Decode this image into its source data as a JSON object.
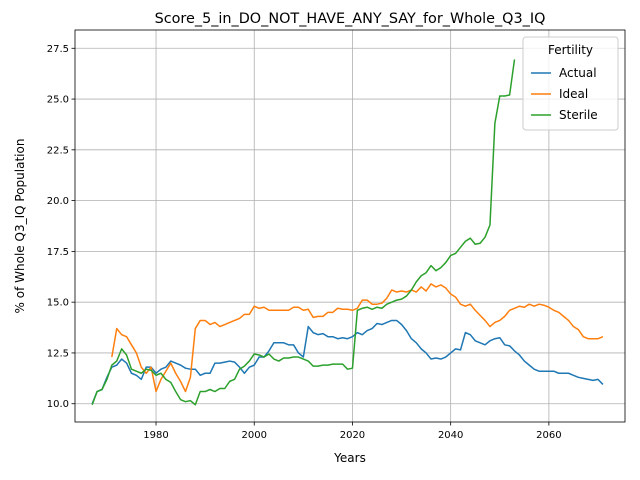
{
  "chart_data": {
    "type": "line",
    "title": "Score_5_in_DO_NOT_HAVE_ANY_SAY_for_Whole_Q3_IQ",
    "xlabel": "Years",
    "ylabel": "% of Whole Q3_IQ Population",
    "xlim": [
      1963.5,
      2075.5
    ],
    "ylim": [
      9.1,
      28.4
    ],
    "xticks": [
      1980,
      2000,
      2020,
      2040,
      2060
    ],
    "yticks": [
      10.0,
      12.5,
      15.0,
      17.5,
      20.0,
      22.5,
      25.0,
      27.5
    ],
    "xtick_labels": [
      "1980",
      "2000",
      "2020",
      "2040",
      "2060"
    ],
    "ytick_labels": [
      "10.0",
      "12.5",
      "15.0",
      "17.5",
      "20.0",
      "22.5",
      "25.0",
      "27.5"
    ],
    "grid": true,
    "legend": {
      "title": "Fertility",
      "position": "top-right"
    },
    "series": [
      {
        "name": "Actual",
        "color": "#1f77b4",
        "points": [
          [
            1967,
            10.0
          ],
          [
            1968,
            10.6
          ],
          [
            1969,
            10.7
          ],
          [
            1970,
            11.3
          ],
          [
            1971,
            11.8
          ],
          [
            1972,
            11.9
          ],
          [
            1973,
            12.2
          ],
          [
            1974,
            12.0
          ],
          [
            1975,
            11.5
          ],
          [
            1976,
            11.4
          ],
          [
            1977,
            11.2
          ],
          [
            1978,
            11.8
          ],
          [
            1979,
            11.8
          ],
          [
            1980,
            11.5
          ],
          [
            1981,
            11.7
          ],
          [
            1982,
            11.8
          ],
          [
            1983,
            12.1
          ],
          [
            1984,
            12.0
          ],
          [
            1985,
            11.9
          ],
          [
            1986,
            11.75
          ],
          [
            1987,
            11.7
          ],
          [
            1988,
            11.7
          ],
          [
            1989,
            11.4
          ],
          [
            1990,
            11.5
          ],
          [
            1991,
            11.5
          ],
          [
            1992,
            12.0
          ],
          [
            1993,
            12.0
          ],
          [
            1994,
            12.05
          ],
          [
            1995,
            12.1
          ],
          [
            1996,
            12.05
          ],
          [
            1997,
            11.8
          ],
          [
            1998,
            11.5
          ],
          [
            1999,
            11.8
          ],
          [
            2000,
            11.9
          ],
          [
            2001,
            12.3
          ],
          [
            2002,
            12.3
          ],
          [
            2003,
            12.6
          ],
          [
            2004,
            13.0
          ],
          [
            2005,
            13.0
          ],
          [
            2006,
            13.0
          ],
          [
            2007,
            12.9
          ],
          [
            2008,
            12.9
          ],
          [
            2009,
            12.5
          ],
          [
            2010,
            12.3
          ],
          [
            2011,
            13.8
          ],
          [
            2012,
            13.5
          ],
          [
            2013,
            13.4
          ],
          [
            2014,
            13.45
          ],
          [
            2015,
            13.3
          ],
          [
            2016,
            13.3
          ],
          [
            2017,
            13.2
          ],
          [
            2018,
            13.25
          ],
          [
            2019,
            13.2
          ],
          [
            2020,
            13.3
          ],
          [
            2021,
            13.5
          ],
          [
            2022,
            13.4
          ],
          [
            2023,
            13.6
          ],
          [
            2024,
            13.7
          ],
          [
            2025,
            13.95
          ],
          [
            2026,
            13.9
          ],
          [
            2027,
            14.0
          ],
          [
            2028,
            14.1
          ],
          [
            2029,
            14.1
          ],
          [
            2030,
            13.9
          ],
          [
            2031,
            13.6
          ],
          [
            2032,
            13.2
          ],
          [
            2033,
            13.0
          ],
          [
            2034,
            12.7
          ],
          [
            2035,
            12.5
          ],
          [
            2036,
            12.2
          ],
          [
            2037,
            12.25
          ],
          [
            2038,
            12.2
          ],
          [
            2039,
            12.3
          ],
          [
            2040,
            12.5
          ],
          [
            2041,
            12.7
          ],
          [
            2042,
            12.65
          ],
          [
            2043,
            13.5
          ],
          [
            2044,
            13.4
          ],
          [
            2045,
            13.1
          ],
          [
            2046,
            13.0
          ],
          [
            2047,
            12.9
          ],
          [
            2048,
            13.1
          ],
          [
            2049,
            13.2
          ],
          [
            2050,
            13.25
          ],
          [
            2051,
            12.9
          ],
          [
            2052,
            12.85
          ],
          [
            2053,
            12.6
          ],
          [
            2054,
            12.4
          ],
          [
            2055,
            12.1
          ],
          [
            2056,
            11.9
          ],
          [
            2057,
            11.7
          ],
          [
            2058,
            11.6
          ],
          [
            2059,
            11.6
          ],
          [
            2060,
            11.6
          ],
          [
            2061,
            11.6
          ],
          [
            2062,
            11.5
          ],
          [
            2063,
            11.5
          ],
          [
            2064,
            11.5
          ],
          [
            2065,
            11.4
          ],
          [
            2066,
            11.3
          ],
          [
            2067,
            11.25
          ],
          [
            2068,
            11.2
          ],
          [
            2069,
            11.15
          ],
          [
            2070,
            11.2
          ],
          [
            2071,
            10.95
          ]
        ]
      },
      {
        "name": "Ideal",
        "color": "#ff7f0e",
        "points": [
          [
            1971,
            12.3
          ],
          [
            1972,
            13.7
          ],
          [
            1973,
            13.4
          ],
          [
            1974,
            13.3
          ],
          [
            1975,
            12.9
          ],
          [
            1976,
            12.5
          ],
          [
            1977,
            11.8
          ],
          [
            1978,
            11.5
          ],
          [
            1979,
            11.8
          ],
          [
            1980,
            10.6
          ],
          [
            1981,
            11.2
          ],
          [
            1982,
            11.6
          ],
          [
            1983,
            12.0
          ],
          [
            1984,
            11.5
          ],
          [
            1985,
            11.1
          ],
          [
            1986,
            10.6
          ],
          [
            1987,
            11.3
          ],
          [
            1988,
            13.7
          ],
          [
            1989,
            14.1
          ],
          [
            1990,
            14.1
          ],
          [
            1991,
            13.9
          ],
          [
            1992,
            14.0
          ],
          [
            1993,
            13.8
          ],
          [
            1994,
            13.9
          ],
          [
            1995,
            14.0
          ],
          [
            1996,
            14.1
          ],
          [
            1997,
            14.2
          ],
          [
            1998,
            14.4
          ],
          [
            1999,
            14.4
          ],
          [
            2000,
            14.8
          ],
          [
            2001,
            14.7
          ],
          [
            2002,
            14.75
          ],
          [
            2003,
            14.6
          ],
          [
            2004,
            14.6
          ],
          [
            2005,
            14.6
          ],
          [
            2006,
            14.6
          ],
          [
            2007,
            14.6
          ],
          [
            2008,
            14.75
          ],
          [
            2009,
            14.75
          ],
          [
            2010,
            14.6
          ],
          [
            2011,
            14.65
          ],
          [
            2012,
            14.25
          ],
          [
            2013,
            14.3
          ],
          [
            2014,
            14.3
          ],
          [
            2015,
            14.5
          ],
          [
            2016,
            14.5
          ],
          [
            2017,
            14.7
          ],
          [
            2018,
            14.65
          ],
          [
            2019,
            14.65
          ],
          [
            2020,
            14.6
          ],
          [
            2021,
            14.7
          ],
          [
            2022,
            15.1
          ],
          [
            2023,
            15.1
          ],
          [
            2024,
            14.9
          ],
          [
            2025,
            14.9
          ],
          [
            2026,
            14.95
          ],
          [
            2027,
            15.2
          ],
          [
            2028,
            15.6
          ],
          [
            2029,
            15.5
          ],
          [
            2030,
            15.55
          ],
          [
            2031,
            15.5
          ],
          [
            2032,
            15.6
          ],
          [
            2033,
            15.5
          ],
          [
            2034,
            15.75
          ],
          [
            2035,
            15.55
          ],
          [
            2036,
            15.9
          ],
          [
            2037,
            15.75
          ],
          [
            2038,
            15.85
          ],
          [
            2039,
            15.7
          ],
          [
            2040,
            15.4
          ],
          [
            2041,
            15.25
          ],
          [
            2042,
            14.9
          ],
          [
            2043,
            14.8
          ],
          [
            2044,
            14.9
          ],
          [
            2045,
            14.6
          ],
          [
            2046,
            14.35
          ],
          [
            2047,
            14.1
          ],
          [
            2048,
            13.8
          ],
          [
            2049,
            14.0
          ],
          [
            2050,
            14.1
          ],
          [
            2051,
            14.3
          ],
          [
            2052,
            14.6
          ],
          [
            2053,
            14.7
          ],
          [
            2054,
            14.8
          ],
          [
            2055,
            14.75
          ],
          [
            2056,
            14.9
          ],
          [
            2057,
            14.8
          ],
          [
            2058,
            14.9
          ],
          [
            2059,
            14.85
          ],
          [
            2060,
            14.75
          ],
          [
            2061,
            14.6
          ],
          [
            2062,
            14.5
          ],
          [
            2063,
            14.3
          ],
          [
            2064,
            14.1
          ],
          [
            2065,
            13.8
          ],
          [
            2066,
            13.65
          ],
          [
            2067,
            13.3
          ],
          [
            2068,
            13.2
          ],
          [
            2069,
            13.2
          ],
          [
            2070,
            13.2
          ],
          [
            2071,
            13.3
          ]
        ]
      },
      {
        "name": "Sterile",
        "color": "#2ca02c",
        "points": [
          [
            1967,
            9.95
          ],
          [
            1968,
            10.6
          ],
          [
            1969,
            10.7
          ],
          [
            1970,
            11.2
          ],
          [
            1971,
            11.9
          ],
          [
            1972,
            12.1
          ],
          [
            1973,
            12.7
          ],
          [
            1974,
            12.4
          ],
          [
            1975,
            11.7
          ],
          [
            1976,
            11.6
          ],
          [
            1977,
            11.5
          ],
          [
            1978,
            11.7
          ],
          [
            1979,
            11.65
          ],
          [
            1980,
            11.4
          ],
          [
            1981,
            11.5
          ],
          [
            1982,
            11.2
          ],
          [
            1983,
            11.05
          ],
          [
            1984,
            10.6
          ],
          [
            1985,
            10.2
          ],
          [
            1986,
            10.1
          ],
          [
            1987,
            10.15
          ],
          [
            1988,
            9.95
          ],
          [
            1989,
            10.6
          ],
          [
            1990,
            10.6
          ],
          [
            1991,
            10.7
          ],
          [
            1992,
            10.6
          ],
          [
            1993,
            10.75
          ],
          [
            1994,
            10.75
          ],
          [
            1995,
            11.1
          ],
          [
            1996,
            11.2
          ],
          [
            1997,
            11.7
          ],
          [
            1998,
            11.85
          ],
          [
            1999,
            12.1
          ],
          [
            2000,
            12.45
          ],
          [
            2001,
            12.4
          ],
          [
            2002,
            12.3
          ],
          [
            2003,
            12.45
          ],
          [
            2004,
            12.2
          ],
          [
            2005,
            12.1
          ],
          [
            2006,
            12.25
          ],
          [
            2007,
            12.25
          ],
          [
            2008,
            12.3
          ],
          [
            2009,
            12.3
          ],
          [
            2010,
            12.2
          ],
          [
            2011,
            12.1
          ],
          [
            2012,
            11.85
          ],
          [
            2013,
            11.85
          ],
          [
            2014,
            11.9
          ],
          [
            2015,
            11.9
          ],
          [
            2016,
            11.95
          ],
          [
            2017,
            11.95
          ],
          [
            2018,
            11.95
          ],
          [
            2019,
            11.7
          ],
          [
            2020,
            11.75
          ],
          [
            2021,
            14.6
          ],
          [
            2022,
            14.7
          ],
          [
            2023,
            14.75
          ],
          [
            2024,
            14.65
          ],
          [
            2025,
            14.75
          ],
          [
            2026,
            14.7
          ],
          [
            2027,
            14.9
          ],
          [
            2028,
            15.0
          ],
          [
            2029,
            15.1
          ],
          [
            2030,
            15.15
          ],
          [
            2031,
            15.3
          ],
          [
            2032,
            15.6
          ],
          [
            2033,
            16.0
          ],
          [
            2034,
            16.3
          ],
          [
            2035,
            16.45
          ],
          [
            2036,
            16.8
          ],
          [
            2037,
            16.55
          ],
          [
            2038,
            16.7
          ],
          [
            2039,
            16.95
          ],
          [
            2040,
            17.3
          ],
          [
            2041,
            17.4
          ],
          [
            2042,
            17.7
          ],
          [
            2043,
            18.0
          ],
          [
            2044,
            18.15
          ],
          [
            2045,
            17.85
          ],
          [
            2046,
            17.9
          ],
          [
            2047,
            18.2
          ],
          [
            2048,
            18.8
          ],
          [
            2049,
            23.8
          ],
          [
            2050,
            25.15
          ],
          [
            2051,
            25.15
          ],
          [
            2052,
            25.2
          ],
          [
            2053,
            26.95
          ]
        ]
      }
    ]
  }
}
